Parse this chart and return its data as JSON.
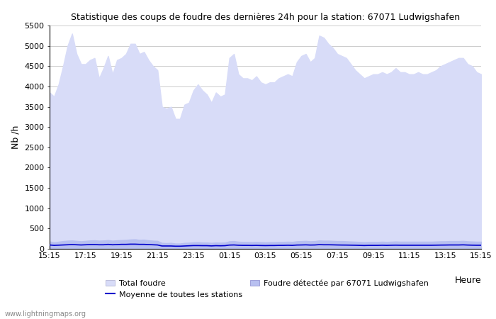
{
  "title": "Statistique des coups de foudre des dernières 24h pour la station: 67071 Ludwigshafen",
  "xlabel": "Heure",
  "ylabel": "Nb /h",
  "watermark": "www.lightningmaps.org",
  "x_labels": [
    "15:15",
    "17:15",
    "19:15",
    "21:15",
    "23:15",
    "01:15",
    "03:15",
    "05:15",
    "07:15",
    "09:15",
    "11:15",
    "13:15",
    "15:15"
  ],
  "ylim": [
    0,
    5500
  ],
  "yticks": [
    0,
    500,
    1000,
    1500,
    2000,
    2500,
    3000,
    3500,
    4000,
    4500,
    5000,
    5500
  ],
  "bg_color": "#ffffff",
  "plot_bg_color": "#ffffff",
  "grid_color": "#cccccc",
  "total_foudre_color": "#d8dcf8",
  "foudre_station_color": "#b8c0f0",
  "moyenne_color": "#0000cc",
  "total_foudre_values": [
    3850,
    3750,
    4050,
    4500,
    5000,
    5300,
    4800,
    4550,
    4550,
    4650,
    4700,
    4200,
    4450,
    4750,
    4300,
    4650,
    4700,
    4800,
    5050,
    5050,
    4800,
    4850,
    4650,
    4500,
    4400,
    3500,
    3450,
    3500,
    3200,
    3200,
    3550,
    3600,
    3900,
    4050,
    3900,
    3800,
    3600,
    3850,
    3750,
    3800,
    4700,
    4800,
    4300,
    4200,
    4200,
    4150,
    4250,
    4100,
    4050,
    4100,
    4100,
    4200,
    4250,
    4300,
    4250,
    4600,
    4750,
    4800,
    4600,
    4700,
    5250,
    5200,
    5050,
    4950,
    4800,
    4750,
    4700,
    4550,
    4400,
    4300,
    4200,
    4250,
    4300,
    4300,
    4350,
    4300,
    4350,
    4450,
    4350,
    4350,
    4300,
    4300,
    4350,
    4300,
    4300,
    4350,
    4400,
    4500,
    4550,
    4600,
    4650,
    4700,
    4700,
    4550,
    4500,
    4350,
    4300
  ],
  "foudre_station_values": [
    180,
    160,
    175,
    190,
    200,
    205,
    195,
    185,
    195,
    205,
    210,
    200,
    205,
    215,
    200,
    210,
    215,
    220,
    230,
    235,
    220,
    225,
    210,
    200,
    195,
    145,
    140,
    145,
    130,
    130,
    145,
    150,
    160,
    165,
    155,
    155,
    145,
    155,
    150,
    155,
    185,
    190,
    175,
    170,
    170,
    165,
    170,
    165,
    160,
    165,
    165,
    170,
    170,
    175,
    170,
    185,
    190,
    195,
    185,
    190,
    205,
    200,
    200,
    195,
    190,
    190,
    185,
    180,
    175,
    170,
    165,
    170,
    170,
    170,
    175,
    170,
    175,
    180,
    175,
    175,
    175,
    175,
    175,
    175,
    175,
    175,
    180,
    185,
    185,
    190,
    190,
    190,
    195,
    185,
    180,
    175,
    175
  ],
  "moyenne_values": [
    95,
    85,
    90,
    95,
    100,
    105,
    100,
    95,
    100,
    105,
    105,
    100,
    100,
    110,
    100,
    105,
    110,
    110,
    115,
    115,
    110,
    110,
    105,
    100,
    95,
    70,
    70,
    70,
    65,
    65,
    70,
    75,
    80,
    80,
    78,
    78,
    72,
    78,
    75,
    78,
    92,
    95,
    88,
    85,
    85,
    83,
    85,
    82,
    80,
    82,
    82,
    85,
    85,
    88,
    85,
    93,
    95,
    98,
    93,
    95,
    103,
    100,
    100,
    98,
    95,
    93,
    92,
    90,
    88,
    85,
    82,
    85,
    85,
    85,
    88,
    85,
    88,
    90,
    88,
    88,
    88,
    88,
    88,
    88,
    88,
    88,
    90,
    92,
    93,
    95,
    95,
    95,
    98,
    93,
    90,
    88,
    88
  ]
}
